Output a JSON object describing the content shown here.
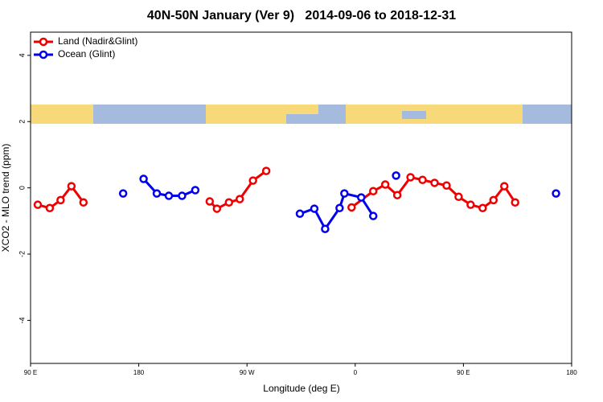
{
  "chart_data": {
    "type": "line",
    "title": "40N-50N January (Ver 9)   2014-09-06 to 2018-12-31",
    "xlabel": "Longitude (deg E)",
    "ylabel": "XCO2 - MLO trend (ppm)",
    "xlim": [
      90,
      540
    ],
    "ylim": [
      -5.3,
      4.7
    ],
    "xticks": [
      {
        "value": 90,
        "label": "90 E"
      },
      180,
      {
        "value": 270,
        "label": "90 W"
      },
      {
        "value": 360,
        "label": "0"
      },
      {
        "value": 450,
        "label": "90 E"
      },
      {
        "value": 540,
        "label": "180"
      }
    ],
    "yticks": [
      4,
      2,
      0,
      -2,
      -4
    ],
    "legend": "top-left",
    "series": [
      {
        "name": "Land (Nadir&Glint)",
        "color": "#ee0000",
        "x": [
          96,
          106,
          115,
          124,
          134,
          null,
          239,
          245,
          255,
          264,
          275,
          286,
          null,
          357,
          375,
          385,
          395,
          406,
          416,
          426,
          436,
          446,
          456,
          466,
          475,
          484,
          493
        ],
        "values": [
          -0.51,
          -0.61,
          -0.37,
          0.05,
          -0.44,
          null,
          -0.41,
          -0.63,
          -0.44,
          -0.34,
          0.22,
          0.51,
          null,
          -0.59,
          -0.1,
          0.1,
          -0.22,
          0.32,
          0.24,
          0.15,
          0.07,
          -0.27,
          -0.51,
          -0.61,
          -0.37,
          0.05,
          -0.44
        ]
      },
      {
        "name": "Ocean (Glint)",
        "color": "#0000ee",
        "x": [
          167,
          null,
          184,
          195,
          205,
          216,
          227,
          null,
          314,
          326,
          335,
          347,
          351,
          365,
          375,
          null,
          394,
          null,
          527
        ],
        "values": [
          -0.17,
          null,
          0.27,
          -0.17,
          -0.24,
          -0.24,
          -0.07,
          null,
          -0.78,
          -0.63,
          -1.24,
          -0.61,
          -0.17,
          -0.29,
          -0.85,
          null,
          0.37,
          null,
          -0.17
        ]
      }
    ]
  }
}
